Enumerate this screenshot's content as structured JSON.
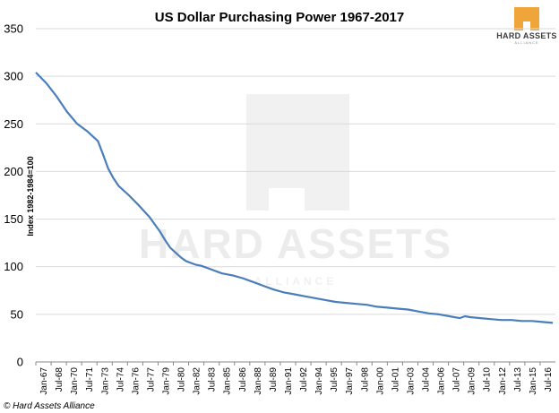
{
  "chart_data": {
    "type": "line",
    "title": "US Dollar Purchasing Power 1967-2017",
    "ylabel": "Index 1982-1984=100",
    "xlabel": "",
    "ylim": [
      0,
      350
    ],
    "yticks": [
      0,
      50,
      100,
      150,
      200,
      250,
      300,
      350
    ],
    "x_tick_labels": [
      "Jan-67",
      "Jul-68",
      "Jan-70",
      "Jul-71",
      "Jan-73",
      "Jul-74",
      "Jan-76",
      "Jul-77",
      "Jan-79",
      "Jul-80",
      "Jan-82",
      "Jul-83",
      "Jan-85",
      "Jul-86",
      "Jan-88",
      "Jul-89",
      "Jan-91",
      "Jul-92",
      "Jan-94",
      "Jul-95",
      "Jan-97",
      "Jul-98",
      "Jan-00",
      "Jul-01",
      "Jan-03",
      "Jul-04",
      "Jan-06",
      "Jul-07",
      "Jan-09",
      "Jul-10",
      "Jan-12",
      "Jul-13",
      "Jan-15",
      "Jul-16"
    ],
    "grid": "horizontal",
    "legend": "none",
    "series": [
      {
        "color": "#4a7ebb",
        "x": [
          1967.0,
          1968.0,
          1969.0,
          1970.0,
          1971.0,
          1972.0,
          1973.0,
          1973.5,
          1974.0,
          1974.5,
          1975.0,
          1976.0,
          1977.0,
          1978.0,
          1979.0,
          1979.5,
          1980.0,
          1980.5,
          1981.0,
          1981.5,
          1982.0,
          1982.5,
          1983.0,
          1984.0,
          1985.0,
          1986.0,
          1987.0,
          1988.0,
          1989.0,
          1990.0,
          1991.0,
          1992.0,
          1993.0,
          1994.0,
          1995.0,
          1996.0,
          1997.0,
          1998.0,
          1999.0,
          2000.0,
          2001.0,
          2002.0,
          2003.0,
          2004.0,
          2005.0,
          2006.0,
          2007.0,
          2008.0,
          2008.5,
          2009.0,
          2010.0,
          2011.0,
          2012.0,
          2013.0,
          2014.0,
          2015.0,
          2016.0,
          2017.0
        ],
        "y": [
          304,
          293,
          279,
          263,
          250,
          242,
          232,
          218,
          203,
          193,
          185,
          175,
          164,
          152,
          137,
          128,
          120,
          115,
          110,
          106,
          104,
          102,
          101,
          97,
          93,
          91,
          88,
          84,
          80,
          76,
          73,
          71,
          69,
          67,
          65,
          63,
          62,
          61,
          60,
          58,
          57,
          56,
          55,
          53,
          51,
          50,
          48,
          46,
          48,
          47,
          46,
          45,
          44,
          44,
          43,
          43,
          42,
          41
        ]
      }
    ],
    "credit": "© Hard Assets Alliance"
  },
  "logo": {
    "text": "HARD ASSETS",
    "subtext": "ALLIANCE",
    "accent": "#f0a53a"
  },
  "watermark": {
    "text": "HARD ASSETS",
    "subtext": "ALLIANCE"
  },
  "colors": {
    "line": "#4a7ebb",
    "grid": "#d9d9d9",
    "axis": "#888888"
  }
}
